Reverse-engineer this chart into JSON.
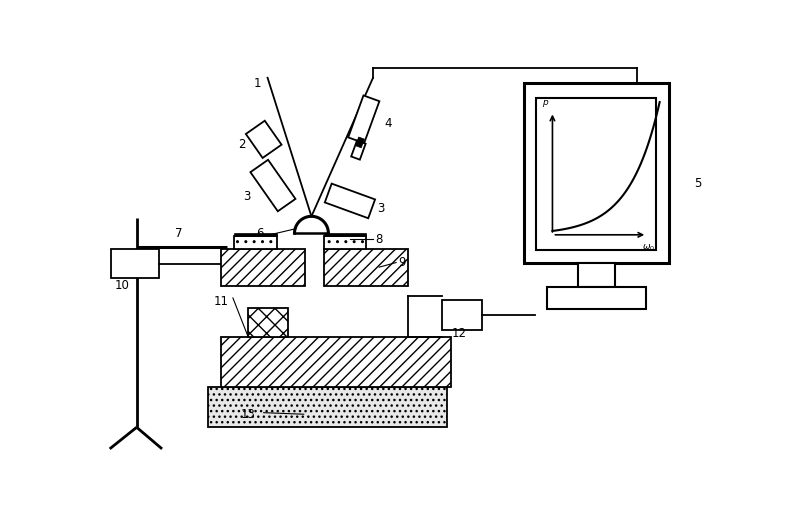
{
  "fig_width": 8.0,
  "fig_height": 5.13,
  "dpi": 100,
  "bg_color": "#ffffff",
  "lc": "#000000",
  "xlim": [
    0,
    8.0
  ],
  "ylim": [
    0,
    5.13
  ]
}
